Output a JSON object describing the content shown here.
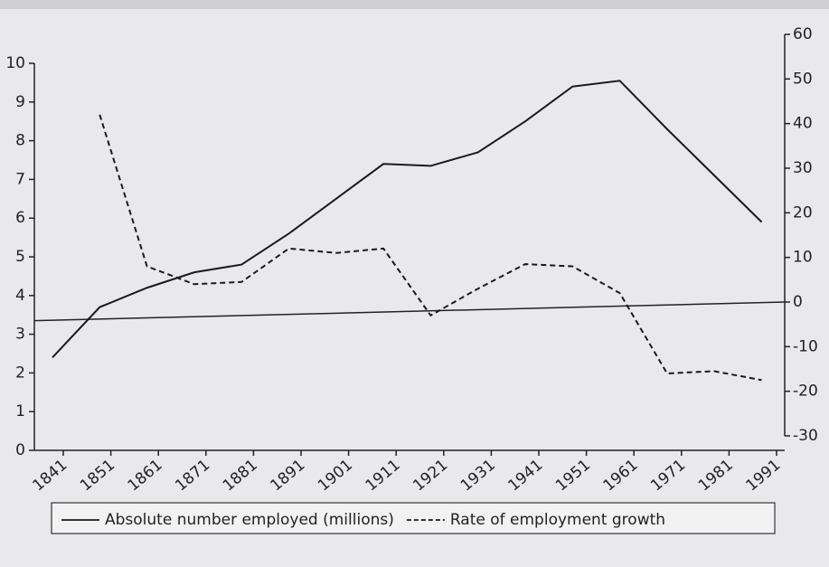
{
  "chart_data": {
    "type": "line",
    "categories": [
      "1841",
      "1851",
      "1861",
      "1871",
      "1881",
      "1891",
      "1901",
      "1911",
      "1921",
      "1931",
      "1941",
      "1951",
      "1961",
      "1971",
      "1981",
      "1991"
    ],
    "series": [
      {
        "name": "Absolute number employed (millions)",
        "color": "#1a1a1a",
        "dash": "solid",
        "values": [
          2.4,
          3.7,
          4.2,
          4.6,
          4.8,
          5.6,
          6.5,
          7.4,
          7.35,
          7.7,
          8.5,
          9.4,
          9.55,
          8.3,
          7.1,
          5.9
        ]
      },
      {
        "name": "Rate of employment growth",
        "color": "#1a1a1a",
        "dash": "dashed",
        "axis": "y2",
        "values": [
          null,
          42,
          8,
          4,
          4.5,
          12,
          11,
          12,
          -3,
          3,
          8.5,
          8,
          2,
          -16,
          -15.5,
          -17.5
        ]
      }
    ],
    "ylim": [
      0,
      10
    ],
    "yticks": [
      0,
      1,
      2,
      3,
      4,
      5,
      6,
      7,
      8,
      9,
      10
    ],
    "y2lim": [
      -30,
      60
    ],
    "y2ticks": [
      -30,
      -20,
      -10,
      0,
      10,
      20,
      30,
      40,
      50,
      60
    ],
    "legend": "bottom"
  }
}
